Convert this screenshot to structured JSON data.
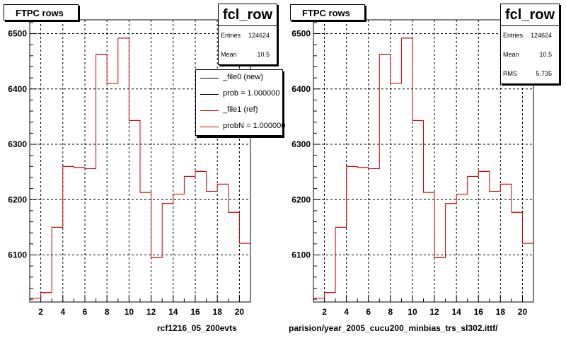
{
  "colors": {
    "histogram_line": "#cc0000",
    "new_line": "#000000",
    "ref_line": "#cc0000",
    "grid": "#000000"
  },
  "pads": [
    {
      "title": "FTPC rows",
      "stats": {
        "name": "fcl_row",
        "rows": [
          {
            "label": "Entries",
            "value": "124624"
          },
          {
            "label": "Mean",
            "value": "10.5"
          }
        ]
      },
      "legend": [
        {
          "label": "_file0 (new)",
          "color": "#000000"
        },
        {
          "label": "prob = 1.000000",
          "color": "#000000"
        },
        {
          "label": "_file1 (ref)",
          "color": "#cc0000"
        },
        {
          "label": "probN = 1.000000",
          "color": "#cc0000"
        }
      ],
      "footer": "rcf1216_05_200evts"
    },
    {
      "title": "FTPC rows",
      "stats": {
        "name": "fcl_row",
        "rows": [
          {
            "label": "Entries",
            "value": "124624"
          },
          {
            "label": "Mean",
            "value": "10.5"
          },
          {
            "label": "RMS",
            "value": "5.735"
          }
        ]
      },
      "footer": "parision/year_2005_cucu200_minbias_trs_sl302.ittf/"
    }
  ],
  "chart_data": [
    {
      "type": "histogram",
      "title": "FTPC rows",
      "xlim": [
        1,
        21
      ],
      "ylim": [
        6015,
        6525
      ],
      "xticks": [
        2,
        4,
        6,
        8,
        10,
        12,
        14,
        16,
        18,
        20
      ],
      "yticks": [
        6100,
        6200,
        6300,
        6400,
        6500
      ],
      "grid": true,
      "bin_edges": [
        1,
        2,
        3,
        4,
        5,
        6,
        7,
        8,
        9,
        10,
        11,
        12,
        13,
        14,
        15,
        16,
        17,
        18,
        19,
        20,
        21
      ],
      "values": [
        6022,
        6032,
        6150,
        6260,
        6258,
        6256,
        6462,
        6410,
        6492,
        6343,
        6213,
        6095,
        6193,
        6210,
        6242,
        6251,
        6215,
        6228,
        6177,
        6121
      ]
    },
    {
      "type": "histogram",
      "title": "FTPC rows",
      "xlim": [
        1,
        21
      ],
      "ylim": [
        6015,
        6525
      ],
      "xticks": [
        2,
        4,
        6,
        8,
        10,
        12,
        14,
        16,
        18,
        20
      ],
      "yticks": [
        6100,
        6200,
        6300,
        6400,
        6500
      ],
      "grid": true,
      "bin_edges": [
        1,
        2,
        3,
        4,
        5,
        6,
        7,
        8,
        9,
        10,
        11,
        12,
        13,
        14,
        15,
        16,
        17,
        18,
        19,
        20,
        21
      ],
      "values": [
        6022,
        6032,
        6150,
        6260,
        6258,
        6256,
        6462,
        6410,
        6492,
        6343,
        6213,
        6095,
        6193,
        6210,
        6242,
        6251,
        6215,
        6228,
        6177,
        6121
      ]
    }
  ]
}
